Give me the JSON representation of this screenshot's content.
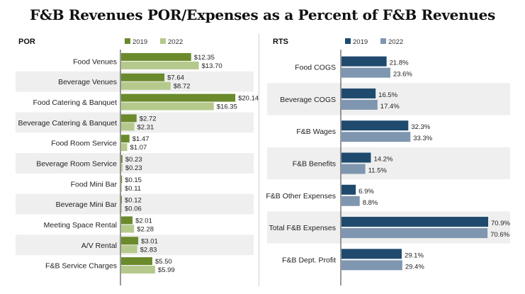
{
  "title": "F&B Revenues POR/Expenses as a Percent of F&B Revenues",
  "colors": {
    "por_2019": "#6a8a2c",
    "por_2022": "#b5c98c",
    "rts_2019": "#1f4a6e",
    "rts_2022": "#7f96b0",
    "band": "#efefef",
    "axis": "#333333"
  },
  "chart_data": [
    {
      "type": "bar",
      "orientation": "horizontal",
      "title": "POR",
      "legend": [
        "2019",
        "2022"
      ],
      "legend_position": "top",
      "categories": [
        "Food Venues",
        "Beverage Venues",
        "Food Catering & Banquet",
        "Beverage Catering & Banquet",
        "Food Room Service",
        "Beverage Room Service",
        "Food Mini Bar",
        "Beverage Mini Bar",
        "Meeting Space Rental",
        "A/V Rental",
        "F&B Service Charges"
      ],
      "series": [
        {
          "name": "2019",
          "values": [
            12.35,
            7.64,
            20.14,
            2.72,
            1.47,
            0.23,
            0.15,
            0.12,
            2.01,
            3.01,
            5.5
          ],
          "labels": [
            "$12.35",
            "$7.64",
            "$20.14",
            "$2.72",
            "$1.47",
            "$0.23",
            "$0.15",
            "$0.12",
            "$2.01",
            "$3.01",
            "$5.50"
          ]
        },
        {
          "name": "2022",
          "values": [
            13.7,
            8.72,
            16.35,
            2.31,
            1.07,
            0.23,
            0.11,
            0.06,
            2.28,
            2.83,
            5.99
          ],
          "labels": [
            "$13.70",
            "$8.72",
            "$16.35",
            "$2.31",
            "$1.07",
            "$0.23",
            "$0.11",
            "$0.06",
            "$2.28",
            "$2.83",
            "$5.99"
          ]
        }
      ],
      "xlim": [
        0,
        21
      ]
    },
    {
      "type": "bar",
      "orientation": "horizontal",
      "title": "RTS",
      "legend": [
        "2019",
        "2022"
      ],
      "legend_position": "top",
      "categories": [
        "Food COGS",
        "Beverage COGS",
        "F&B Wages",
        "F&B Benefits",
        "F&B Other Expenses",
        "Total F&B Expenses",
        "F&B Dept. Profit"
      ],
      "series": [
        {
          "name": "2019",
          "values": [
            21.8,
            16.5,
            32.3,
            14.2,
            6.9,
            70.9,
            29.1
          ],
          "labels": [
            "21.8%",
            "16.5%",
            "32.3%",
            "14.2%",
            "6.9%",
            "70.9%",
            "29.1%"
          ]
        },
        {
          "name": "2022",
          "values": [
            23.6,
            17.4,
            33.3,
            11.5,
            8.8,
            70.6,
            29.4
          ],
          "labels": [
            "23.6%",
            "17.4%",
            "33.3%",
            "11.5%",
            "8.8%",
            "70.6%",
            "29.4%"
          ]
        }
      ],
      "xlim": [
        0,
        71
      ]
    }
  ]
}
